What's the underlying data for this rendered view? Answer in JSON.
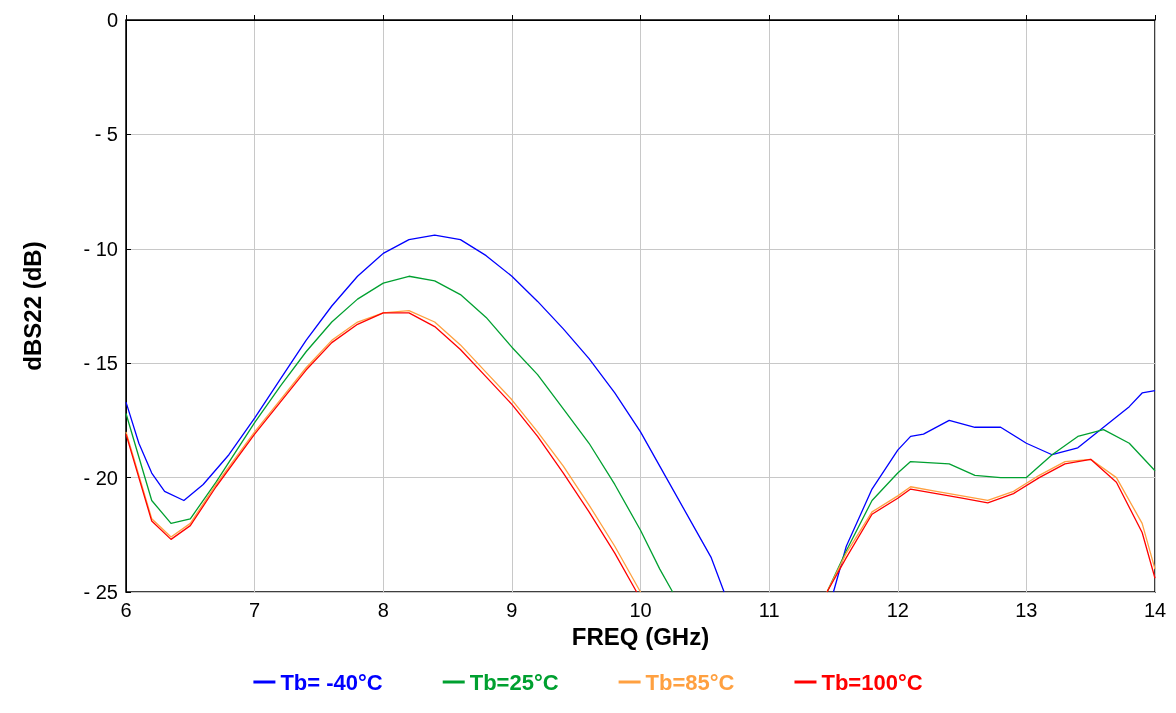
{
  "chart_data": {
    "type": "line",
    "xlabel": "FREQ (GHz)",
    "ylabel": "dBS22 (dB)",
    "xlim": [
      6,
      14
    ],
    "xticks": [
      6,
      7,
      8,
      9,
      10,
      11,
      12,
      13,
      14
    ],
    "ylim": [
      -25,
      0
    ],
    "yticks": [
      {
        "value": -25,
        "label": "- 25"
      },
      {
        "value": -20,
        "label": "- 20"
      },
      {
        "value": -15,
        "label": "- 15"
      },
      {
        "value": -10,
        "label": "- 10"
      },
      {
        "value": -5,
        "label": "- 5"
      },
      0
    ],
    "grid": true,
    "legend": "bottom",
    "marker": "none",
    "line_style": "solid",
    "series": [
      {
        "name": "Tb= -40°C",
        "color": "#0000ff",
        "x": [
          6.0,
          6.1,
          6.2,
          6.3,
          6.45,
          6.6,
          6.8,
          7.0,
          7.2,
          7.4,
          7.6,
          7.8,
          8.0,
          8.2,
          8.4,
          8.6,
          8.8,
          9.0,
          9.2,
          9.4,
          9.6,
          9.8,
          10.0,
          10.2,
          10.4,
          10.55,
          10.65,
          11.0,
          11.5,
          11.6,
          11.8,
          12.0,
          12.1,
          12.2,
          12.4,
          12.6,
          12.8,
          13.0,
          13.2,
          13.4,
          13.6,
          13.8,
          13.9,
          14.0
        ],
        "values": [
          -16.7,
          -18.5,
          -19.8,
          -20.6,
          -21.0,
          -20.3,
          -19.0,
          -17.4,
          -15.7,
          -14.0,
          -12.5,
          -11.2,
          -10.2,
          -9.6,
          -9.4,
          -9.6,
          -10.3,
          -11.2,
          -12.3,
          -13.5,
          -14.8,
          -16.3,
          -18.0,
          -20.0,
          -22.0,
          -23.5,
          -25,
          null,
          -25,
          -23,
          -20.5,
          -18.8,
          -18.2,
          -18.1,
          -17.5,
          -17.8,
          -17.8,
          -18.5,
          -19.0,
          -18.7,
          -17.8,
          -16.9,
          -16.3,
          -16.2
        ]
      },
      {
        "name": "Tb=25°C",
        "color": "#00a030",
        "x": [
          6.0,
          6.2,
          6.35,
          6.5,
          6.7,
          7.0,
          7.2,
          7.4,
          7.6,
          7.8,
          8.0,
          8.2,
          8.4,
          8.6,
          8.8,
          9.0,
          9.2,
          9.4,
          9.6,
          9.8,
          10.0,
          10.15,
          10.25,
          11.0,
          11.45,
          11.6,
          11.8,
          12.0,
          12.1,
          12.4,
          12.6,
          12.8,
          13.0,
          13.2,
          13.4,
          13.6,
          13.8,
          14.0
        ],
        "values": [
          -17.2,
          -21.0,
          -22.0,
          -21.8,
          -20.2,
          -17.6,
          -16.0,
          -14.5,
          -13.2,
          -12.2,
          -11.5,
          -11.2,
          -11.4,
          -12.0,
          -13.0,
          -14.3,
          -15.5,
          -17.0,
          -18.5,
          -20.3,
          -22.3,
          -24.0,
          -25,
          null,
          -25,
          -23.2,
          -21.0,
          -19.8,
          -19.3,
          -19.4,
          -19.9,
          -20.0,
          -20.0,
          -19.0,
          -18.2,
          -17.9,
          -18.5,
          -19.7
        ]
      },
      {
        "name": "Tb=85°C",
        "color": "#ffa040",
        "x": [
          6.0,
          6.2,
          6.35,
          6.5,
          6.7,
          7.0,
          7.2,
          7.4,
          7.6,
          7.8,
          8.0,
          8.2,
          8.4,
          8.6,
          8.8,
          9.0,
          9.2,
          9.4,
          9.6,
          9.8,
          10.0,
          11.0,
          11.45,
          11.6,
          11.8,
          12.0,
          12.1,
          12.3,
          12.5,
          12.7,
          12.9,
          13.1,
          13.3,
          13.5,
          13.7,
          13.9,
          14.0
        ],
        "values": [
          -18.0,
          -21.8,
          -22.6,
          -22.0,
          -20.3,
          -18.0,
          -16.6,
          -15.2,
          -14.0,
          -13.2,
          -12.8,
          -12.7,
          -13.2,
          -14.2,
          -15.4,
          -16.6,
          -18.0,
          -19.5,
          -21.2,
          -23.0,
          -25,
          null,
          -25,
          -23.3,
          -21.5,
          -20.8,
          -20.4,
          -20.6,
          -20.8,
          -21.0,
          -20.6,
          -19.9,
          -19.3,
          -19.2,
          -20.0,
          -22.0,
          -24.0
        ]
      },
      {
        "name": "Tb=100°C",
        "color": "#ff0000",
        "x": [
          6.0,
          6.2,
          6.35,
          6.5,
          6.7,
          7.0,
          7.2,
          7.4,
          7.6,
          7.8,
          8.0,
          8.2,
          8.4,
          8.6,
          8.8,
          9.0,
          9.2,
          9.4,
          9.6,
          9.8,
          9.97,
          11.0,
          11.45,
          11.6,
          11.8,
          12.0,
          12.1,
          12.3,
          12.5,
          12.7,
          12.9,
          13.1,
          13.3,
          13.5,
          13.7,
          13.9,
          14.0
        ],
        "values": [
          -18.1,
          -21.9,
          -22.7,
          -22.1,
          -20.4,
          -18.1,
          -16.7,
          -15.3,
          -14.1,
          -13.3,
          -12.8,
          -12.8,
          -13.4,
          -14.4,
          -15.6,
          -16.8,
          -18.2,
          -19.8,
          -21.5,
          -23.3,
          -25,
          null,
          -25,
          -23.5,
          -21.6,
          -20.9,
          -20.5,
          -20.7,
          -20.9,
          -21.1,
          -20.7,
          -20.0,
          -19.4,
          -19.2,
          -20.2,
          -22.4,
          -24.4
        ]
      }
    ]
  }
}
